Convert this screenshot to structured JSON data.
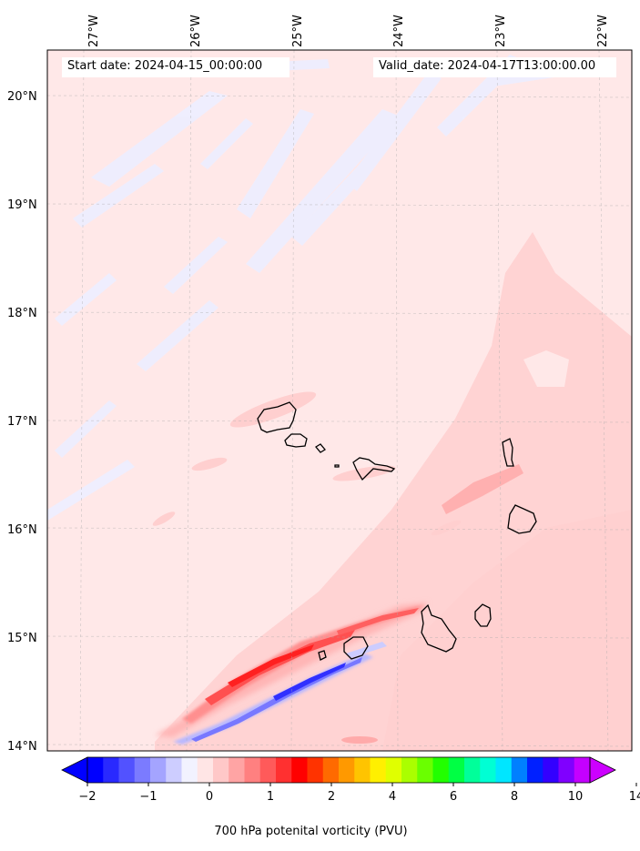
{
  "header": {
    "start_date": "Start date: 2024-04-15_00:00:00",
    "valid_date": "Valid_date: 2024-04-17T13:00:00.00"
  },
  "axes": {
    "lon_labels": [
      "27°W",
      "26°W",
      "25°W",
      "24°W",
      "23°W",
      "22°W"
    ],
    "lat_labels": [
      "20°N",
      "19°N",
      "18°N",
      "17°N",
      "16°N",
      "15°N",
      "14°N"
    ]
  },
  "colorbar": {
    "label": "700 hPa potenital vorticity (PVU)",
    "tick_labels": [
      "−2",
      "−1",
      "0",
      "1",
      "2",
      "4",
      "6",
      "8",
      "10",
      "14"
    ],
    "colors": [
      "#0000ff",
      "#2929ff",
      "#5252ff",
      "#7b7bff",
      "#a4a4ff",
      "#cdcdff",
      "#f2f2ff",
      "#ffe5e5",
      "#ffc8c8",
      "#ffa4a4",
      "#ff8080",
      "#ff5a5a",
      "#ff3030",
      "#ff0000",
      "#ff3300",
      "#ff6a00",
      "#ff9900",
      "#ffc400",
      "#fff000",
      "#e0ff00",
      "#aaff00",
      "#6aff00",
      "#22ff00",
      "#00ff44",
      "#00ff9a",
      "#00ffd4",
      "#00e6ff",
      "#0080ff",
      "#0020ff",
      "#3300ff",
      "#8000ff",
      "#c400ff"
    ],
    "extend_low": "#0000ff",
    "extend_high": "#cc00ff"
  },
  "map": {
    "region": "Cape Verde islands",
    "extent_lon": [
      -27.3,
      -21.7
    ],
    "extent_lat": [
      13.95,
      20.4
    ],
    "background_color": "#ffe8e8"
  }
}
